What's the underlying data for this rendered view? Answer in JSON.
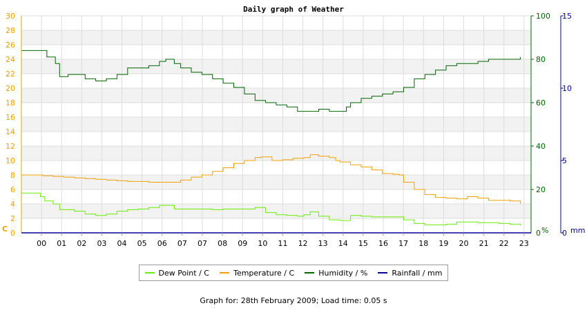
{
  "chart_data": {
    "type": "line",
    "title": "Daily graph of Weather",
    "x_ticks": [
      "00",
      "01",
      "02",
      "03",
      "04",
      "05",
      "06",
      "07",
      "07",
      "08",
      "09",
      "10",
      "11",
      "12",
      "13",
      "14",
      "15",
      "16",
      "17",
      "18",
      "19",
      "20",
      "21",
      "22",
      "23"
    ],
    "x_range_hours": [
      0,
      24
    ],
    "axes": {
      "left": {
        "unit": "C",
        "range": [
          0,
          30
        ],
        "ticks": [
          0,
          2,
          4,
          6,
          8,
          10,
          12,
          14,
          16,
          18,
          20,
          22,
          24,
          26,
          28,
          30
        ],
        "color": "#f0a000"
      },
      "right1": {
        "unit": "%",
        "range": [
          0,
          100
        ],
        "ticks": [
          0,
          20,
          40,
          60,
          80,
          100
        ],
        "color": "#006400"
      },
      "right2": {
        "unit": "mm",
        "range": [
          0,
          15
        ],
        "ticks": [
          0,
          5,
          10,
          15
        ],
        "color": "#000099"
      }
    },
    "grid": true,
    "legend_position": "bottom",
    "series": [
      {
        "name": "Dew Point / C",
        "axis": "left",
        "color": "#66ee00",
        "points": [
          [
            0,
            5.5
          ],
          [
            0.5,
            5.5
          ],
          [
            0.9,
            5.0
          ],
          [
            1.1,
            4.4
          ],
          [
            1.5,
            4.0
          ],
          [
            1.8,
            3.2
          ],
          [
            2.5,
            3.0
          ],
          [
            3.0,
            2.6
          ],
          [
            3.5,
            2.4
          ],
          [
            4.0,
            2.6
          ],
          [
            4.5,
            3.0
          ],
          [
            5.0,
            3.2
          ],
          [
            5.5,
            3.3
          ],
          [
            6.0,
            3.5
          ],
          [
            6.5,
            3.8
          ],
          [
            6.8,
            3.8
          ],
          [
            7.2,
            3.3
          ],
          [
            8.0,
            3.3
          ],
          [
            9.0,
            3.2
          ],
          [
            9.5,
            3.3
          ],
          [
            10.0,
            3.3
          ],
          [
            10.5,
            3.3
          ],
          [
            11.0,
            3.5
          ],
          [
            11.5,
            2.8
          ],
          [
            12.0,
            2.5
          ],
          [
            12.5,
            2.4
          ],
          [
            13.0,
            2.3
          ],
          [
            13.3,
            2.5
          ],
          [
            13.6,
            2.9
          ],
          [
            14.0,
            2.3
          ],
          [
            14.5,
            1.8
          ],
          [
            15.0,
            1.7
          ],
          [
            15.5,
            2.4
          ],
          [
            16.0,
            2.3
          ],
          [
            16.5,
            2.2
          ],
          [
            17.0,
            2.2
          ],
          [
            17.5,
            2.2
          ],
          [
            18.0,
            1.8
          ],
          [
            18.5,
            1.3
          ],
          [
            19.0,
            1.1
          ],
          [
            19.5,
            1.1
          ],
          [
            20.0,
            1.2
          ],
          [
            20.5,
            1.5
          ],
          [
            21.0,
            1.5
          ],
          [
            21.5,
            1.4
          ],
          [
            22.0,
            1.4
          ],
          [
            22.5,
            1.3
          ],
          [
            23.0,
            1.2
          ],
          [
            23.5,
            1.0
          ]
        ]
      },
      {
        "name": "Temperature / C",
        "axis": "left",
        "color": "#f0a000",
        "points": [
          [
            0,
            8.0
          ],
          [
            0.5,
            8.0
          ],
          [
            1.0,
            7.9
          ],
          [
            1.5,
            7.8
          ],
          [
            2.0,
            7.7
          ],
          [
            2.5,
            7.6
          ],
          [
            3.0,
            7.5
          ],
          [
            3.5,
            7.4
          ],
          [
            4.0,
            7.3
          ],
          [
            4.5,
            7.2
          ],
          [
            5.0,
            7.1
          ],
          [
            5.5,
            7.1
          ],
          [
            6.0,
            7.0
          ],
          [
            6.5,
            7.0
          ],
          [
            7.0,
            7.0
          ],
          [
            7.5,
            7.3
          ],
          [
            8.0,
            7.7
          ],
          [
            8.5,
            8.0
          ],
          [
            9.0,
            8.5
          ],
          [
            9.5,
            9.0
          ],
          [
            10.0,
            9.6
          ],
          [
            10.5,
            10.0
          ],
          [
            11.0,
            10.4
          ],
          [
            11.3,
            10.5
          ],
          [
            11.8,
            10.0
          ],
          [
            12.3,
            10.1
          ],
          [
            12.8,
            10.3
          ],
          [
            13.3,
            10.4
          ],
          [
            13.6,
            10.8
          ],
          [
            14.0,
            10.6
          ],
          [
            14.5,
            10.4
          ],
          [
            14.8,
            10.0
          ],
          [
            15.0,
            9.8
          ],
          [
            15.5,
            9.4
          ],
          [
            16.0,
            9.1
          ],
          [
            16.5,
            8.7
          ],
          [
            17.0,
            8.2
          ],
          [
            17.5,
            8.1
          ],
          [
            17.8,
            8.0
          ],
          [
            18.0,
            7.0
          ],
          [
            18.5,
            6.0
          ],
          [
            19.0,
            5.3
          ],
          [
            19.5,
            4.9
          ],
          [
            20.0,
            4.8
          ],
          [
            20.5,
            4.7
          ],
          [
            21.0,
            5.0
          ],
          [
            21.5,
            4.8
          ],
          [
            22.0,
            4.5
          ],
          [
            22.5,
            4.5
          ],
          [
            23.0,
            4.4
          ],
          [
            23.5,
            4.0
          ]
        ]
      },
      {
        "name": "Humidity / %",
        "axis": "right1",
        "color": "#006400",
        "points": [
          [
            0,
            84
          ],
          [
            0.9,
            84
          ],
          [
            1.2,
            81
          ],
          [
            1.6,
            78
          ],
          [
            1.8,
            72
          ],
          [
            2.2,
            73
          ],
          [
            2.7,
            73
          ],
          [
            3.0,
            71
          ],
          [
            3.5,
            70
          ],
          [
            4.0,
            71
          ],
          [
            4.5,
            73
          ],
          [
            5.0,
            76
          ],
          [
            5.5,
            76
          ],
          [
            6.0,
            77
          ],
          [
            6.5,
            79
          ],
          [
            6.8,
            80
          ],
          [
            7.2,
            78
          ],
          [
            7.5,
            76
          ],
          [
            8.0,
            74
          ],
          [
            8.5,
            73
          ],
          [
            9.0,
            71
          ],
          [
            9.5,
            69
          ],
          [
            10.0,
            67
          ],
          [
            10.5,
            64
          ],
          [
            11.0,
            61
          ],
          [
            11.5,
            60
          ],
          [
            12.0,
            59
          ],
          [
            12.5,
            58
          ],
          [
            13.0,
            56
          ],
          [
            13.5,
            56
          ],
          [
            14.0,
            57
          ],
          [
            14.5,
            56
          ],
          [
            15.0,
            56
          ],
          [
            15.3,
            58
          ],
          [
            15.5,
            60
          ],
          [
            16.0,
            62
          ],
          [
            16.5,
            63
          ],
          [
            17.0,
            64
          ],
          [
            17.5,
            65
          ],
          [
            18.0,
            67
          ],
          [
            18.5,
            71
          ],
          [
            19.0,
            73
          ],
          [
            19.5,
            75
          ],
          [
            20.0,
            77
          ],
          [
            20.5,
            78
          ],
          [
            21.0,
            78
          ],
          [
            21.5,
            79
          ],
          [
            22.0,
            80
          ],
          [
            22.5,
            80
          ],
          [
            23.0,
            80
          ],
          [
            23.5,
            81
          ]
        ]
      },
      {
        "name": "Rainfall / mm",
        "axis": "right2",
        "color": "#000099",
        "points": [
          [
            0,
            0
          ],
          [
            23.7,
            0
          ]
        ]
      }
    ]
  },
  "footer": {
    "text": "Graph for: 28th February 2009; Load time: 0.05 s"
  }
}
